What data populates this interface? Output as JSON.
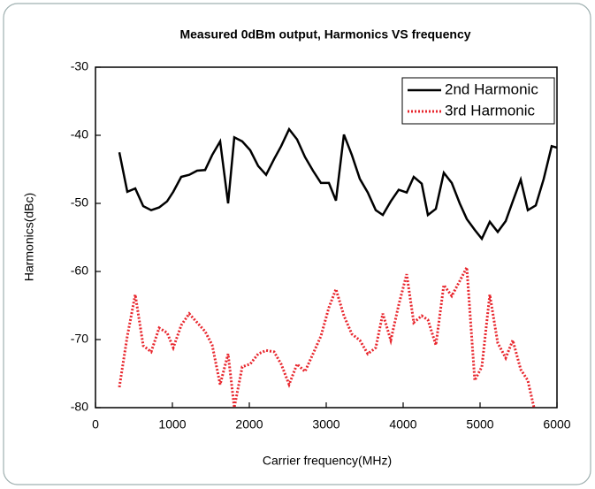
{
  "chart_data": {
    "type": "line",
    "title": "Measured 0dBm output, Harmonics VS frequency",
    "x_label": "Carrier frequency(MHz)",
    "y_label": "Harmonics(dBc)",
    "xlim": [
      0,
      6000
    ],
    "xticks": [
      0,
      1000,
      2000,
      3000,
      4000,
      5000,
      6000
    ],
    "ylim": [
      -80,
      -30
    ],
    "yticks": [
      -80,
      -70,
      -60,
      -50,
      -40,
      -30
    ],
    "legend": "top-right",
    "series": [
      {
        "name": "2nd Harmonic",
        "color": "#000000",
        "dash": "solid",
        "x": [
          310,
          414,
          517,
          621,
          724,
          828,
          931,
          1011,
          1115,
          1218,
          1322,
          1425,
          1517,
          1621,
          1724,
          1805,
          1908,
          2011,
          2115,
          2218,
          2322,
          2414,
          2517,
          2621,
          2724,
          2828,
          2931,
          3034,
          3126,
          3230,
          3333,
          3437,
          3540,
          3644,
          3736,
          3839,
          3943,
          4046,
          4138,
          4241,
          4322,
          4425,
          4529,
          4632,
          4736,
          4828,
          4931,
          5023,
          5126,
          5230,
          5333,
          5425,
          5529,
          5621,
          5724,
          5828,
          5931,
          6000
        ],
        "values": [
          -42.5,
          -48.3,
          -47.8,
          -50.4,
          -51,
          -50.6,
          -49.7,
          -48.3,
          -46.1,
          -45.8,
          -45.2,
          -45.1,
          -42.9,
          -40.9,
          -50,
          -40.3,
          -40.9,
          -42.2,
          -44.5,
          -45.8,
          -43.5,
          -41.6,
          -39.1,
          -40.6,
          -43.2,
          -45.2,
          -47,
          -47,
          -49.6,
          -39.9,
          -42.9,
          -46.4,
          -48.4,
          -51,
          -51.7,
          -49.7,
          -48,
          -48.4,
          -46.1,
          -47.1,
          -51.7,
          -50.8,
          -45.5,
          -47,
          -50,
          -52.3,
          -53.9,
          -55.2,
          -52.7,
          -54.2,
          -52.6,
          -49.7,
          -46.5,
          -51,
          -50.3,
          -46.4,
          -41.6,
          -41.8
        ]
      },
      {
        "name": "3rd Harmonic",
        "color": "#e8262d",
        "dash": "dotted",
        "x": [
          310,
          414,
          517,
          621,
          724,
          828,
          931,
          1011,
          1115,
          1218,
          1322,
          1425,
          1517,
          1621,
          1724,
          1805,
          1908,
          2011,
          2115,
          2218,
          2322,
          2414,
          2517,
          2621,
          2724,
          2828,
          2931,
          3034,
          3126,
          3230,
          3333,
          3437,
          3540,
          3644,
          3736,
          3839,
          3943,
          4046,
          4138,
          4241,
          4322,
          4425,
          4529,
          4632,
          4736,
          4828,
          4931,
          5023,
          5126,
          5230,
          5333,
          5425,
          5529,
          5621,
          5701
        ],
        "values": [
          -77,
          -69.5,
          -63.4,
          -70.9,
          -71.8,
          -68.3,
          -69,
          -71.2,
          -67.9,
          -66.2,
          -67.5,
          -68.8,
          -70.8,
          -76.6,
          -72.1,
          -80,
          -74,
          -73.6,
          -72.1,
          -71.6,
          -71.8,
          -73.6,
          -76.6,
          -73.6,
          -74.7,
          -72.1,
          -69.5,
          -65.3,
          -62.6,
          -66.5,
          -69.2,
          -70.1,
          -72.1,
          -71.2,
          -66.2,
          -70.1,
          -64.9,
          -60.4,
          -67.5,
          -66.5,
          -67.1,
          -70.8,
          -62,
          -63.6,
          -61.4,
          -59.4,
          -76,
          -74,
          -63.4,
          -70.5,
          -72.7,
          -70.1,
          -74.4,
          -76,
          -80
        ]
      }
    ]
  }
}
